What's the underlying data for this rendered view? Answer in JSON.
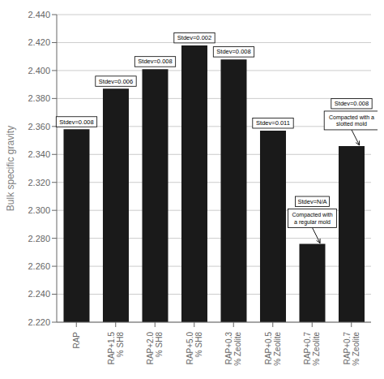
{
  "chart_data": {
    "type": "bar",
    "categories": [
      "RAP",
      "RAP+1.5\n% SH8",
      "RAP+2.0\n% SH8",
      "RAP+5.0\n% SH8",
      "RAP+0.3\n% Zeolite",
      "RAP+0.5\n% Zeolite",
      "RAP+0.7\n% Zeolite",
      "RAP+0.7\n% Zeolite"
    ],
    "values": [
      2.358,
      2.387,
      2.401,
      2.418,
      2.408,
      2.357,
      2.276,
      2.346
    ],
    "color": "#1a1a1a",
    "ylabel": "Bulk specific gravity",
    "ylim": [
      2.22,
      2.44
    ],
    "yticks": [
      {
        "value": 2.22,
        "label": "2.220"
      },
      {
        "value": 2.24,
        "label": "2.240"
      },
      {
        "value": 2.26,
        "label": "2.260"
      },
      {
        "value": 2.28,
        "label": "2.280"
      },
      {
        "value": 2.3,
        "label": "2.300"
      },
      {
        "value": 2.32,
        "label": "2.320"
      },
      {
        "value": 2.34,
        "label": "2.340"
      },
      {
        "value": 2.36,
        "label": "2.360"
      },
      {
        "value": 2.38,
        "label": "2.380"
      },
      {
        "value": 2.4,
        "label": "2.400"
      },
      {
        "value": 2.42,
        "label": "2.420"
      },
      {
        "value": 2.44,
        "label": "2.440"
      }
    ],
    "grid": true,
    "stdev_labels": [
      "Stdev=0.008",
      "Stdev=0.006",
      "Stdev=0.008",
      "Stdev=0.002",
      "Stdev=0.008",
      "Stdev=0.011",
      "Stdev=N/A",
      "Stdev=0.008"
    ],
    "annotations": [
      {
        "text": "Compacted with a\nslotted mold",
        "index": 7
      },
      {
        "text": "Compacted with\na regular mold",
        "index": 6
      }
    ]
  }
}
